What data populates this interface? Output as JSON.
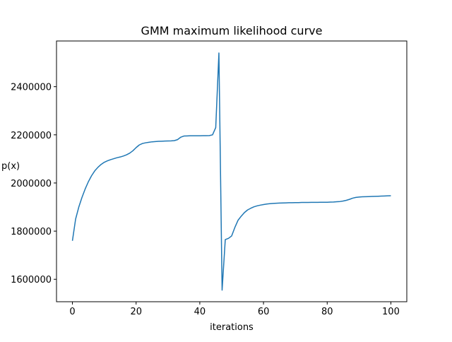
{
  "chart_data": {
    "type": "line",
    "title": "GMM maximum likelihood curve",
    "xlabel": "iterations",
    "ylabel": "p(x)",
    "color": "#1f77b4",
    "x": [
      0,
      1,
      2,
      3,
      4,
      5,
      6,
      7,
      8,
      9,
      10,
      11,
      12,
      13,
      14,
      15,
      16,
      17,
      18,
      19,
      20,
      21,
      22,
      23,
      24,
      25,
      26,
      27,
      28,
      29,
      30,
      31,
      32,
      33,
      34,
      35,
      36,
      37,
      38,
      39,
      40,
      41,
      42,
      43,
      44,
      45,
      46,
      47,
      48,
      49,
      50,
      51,
      52,
      53,
      54,
      55,
      56,
      57,
      58,
      59,
      60,
      61,
      62,
      63,
      64,
      65,
      66,
      67,
      68,
      69,
      70,
      71,
      72,
      73,
      74,
      75,
      76,
      77,
      78,
      79,
      80,
      81,
      82,
      83,
      84,
      85,
      86,
      87,
      88,
      89,
      90,
      91,
      92,
      93,
      94,
      95,
      96,
      97,
      98,
      99,
      100
    ],
    "values": [
      1760000,
      1850000,
      1900000,
      1940000,
      1975000,
      2005000,
      2030000,
      2050000,
      2065000,
      2077000,
      2086000,
      2092000,
      2097000,
      2101000,
      2105000,
      2108000,
      2112000,
      2117000,
      2124000,
      2134000,
      2147000,
      2158000,
      2164000,
      2167000,
      2169000,
      2171000,
      2172000,
      2173000,
      2173500,
      2174000,
      2174500,
      2175000,
      2176000,
      2180000,
      2190000,
      2195000,
      2195500,
      2196000,
      2196000,
      2196000,
      2196000,
      2196500,
      2196500,
      2197000,
      2200000,
      2230000,
      2540000,
      1555000,
      1765000,
      1770000,
      1780000,
      1815000,
      1845000,
      1862000,
      1877000,
      1888000,
      1895000,
      1901000,
      1905000,
      1908000,
      1910500,
      1912500,
      1914000,
      1915000,
      1916000,
      1916500,
      1917000,
      1917500,
      1918000,
      1918000,
      1918500,
      1918500,
      1919000,
      1919000,
      1919000,
      1919500,
      1919500,
      1919500,
      1920000,
      1920000,
      1920000,
      1920500,
      1921000,
      1922000,
      1923000,
      1925000,
      1928000,
      1932000,
      1937000,
      1940000,
      1941500,
      1942500,
      1943000,
      1943500,
      1944000,
      1944500,
      1945000,
      1945500,
      1946000,
      1946500,
      1947000
    ],
    "xlim": [
      -5,
      105
    ],
    "ylim": [
      1506800,
      2589800
    ],
    "xticks": [
      0,
      20,
      40,
      60,
      80,
      100
    ],
    "yticks": [
      1600000,
      1800000,
      2000000,
      2200000,
      2400000
    ]
  }
}
